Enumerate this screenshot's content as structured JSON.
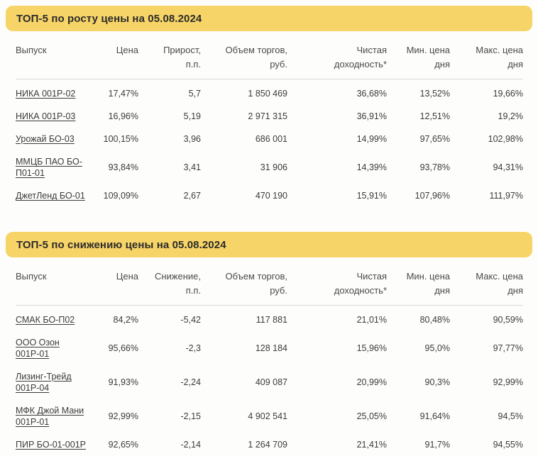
{
  "page": {
    "accent_yellow": "#f7d467",
    "text_color": "#3b3b3b",
    "divider_color": "#d9d9d9",
    "date": "05.08.2024"
  },
  "tables": [
    {
      "title": "ТОП-5 по росту цены на 05.08.2024",
      "headers": {
        "issue": "Выпуск",
        "price": "Цена",
        "change": "Прирост,\nп.п.",
        "volume": "Объем торгов,\nруб.",
        "yield": "Чистая\nдоходность*",
        "min": "Мин. цена\nдня",
        "max": "Макс. цена\nдня"
      },
      "rows": [
        {
          "issue": "НИКА 001Р-02",
          "price": "17,47%",
          "change": "5,7",
          "volume": "1 850 469",
          "yield": "36,68%",
          "min": "13,52%",
          "max": "19,66%"
        },
        {
          "issue": "НИКА 001Р-03",
          "price": "16,96%",
          "change": "5,19",
          "volume": "2 971 315",
          "yield": "36,91%",
          "min": "12,51%",
          "max": "19,2%"
        },
        {
          "issue": "Урожай БО-03",
          "price": "100,15%",
          "change": "3,96",
          "volume": "686 001",
          "yield": "14,99%",
          "min": "97,65%",
          "max": "102,98%"
        },
        {
          "issue": "ММЦБ ПАО БО-П01-01",
          "price": "93,84%",
          "change": "3,41",
          "volume": "31 906",
          "yield": "14,39%",
          "min": "93,78%",
          "max": "94,31%"
        },
        {
          "issue": "ДжетЛенд БО-01",
          "price": "109,09%",
          "change": "2,67",
          "volume": "470 190",
          "yield": "15,91%",
          "min": "107,96%",
          "max": "111,97%"
        }
      ]
    },
    {
      "title": "ТОП-5 по снижению цены на 05.08.2024",
      "headers": {
        "issue": "Выпуск",
        "price": "Цена",
        "change": "Снижение,\nп.п.",
        "volume": "Объем торгов,\nруб.",
        "yield": "Чистая\nдоходность*",
        "min": "Мин. цена\nдня",
        "max": "Макс. цена\nдня"
      },
      "rows": [
        {
          "issue": "СМАК БО-П02",
          "price": "84,2%",
          "change": "-5,42",
          "volume": "117 881",
          "yield": "21,01%",
          "min": "80,48%",
          "max": "90,59%"
        },
        {
          "issue": "ООО Озон 001Р-01",
          "price": "95,66%",
          "change": "-2,3",
          "volume": "128 184",
          "yield": "15,96%",
          "min": "95,0%",
          "max": "97,77%"
        },
        {
          "issue": "Лизинг-Трейд 001Р-04",
          "price": "91,93%",
          "change": "-2,24",
          "volume": "409 087",
          "yield": "20,99%",
          "min": "90,3%",
          "max": "92,99%"
        },
        {
          "issue": "МФК Джой Мани 001Р-01",
          "price": "92,99%",
          "change": "-2,15",
          "volume": "4 902 541",
          "yield": "25,05%",
          "min": "91,64%",
          "max": "94,5%"
        },
        {
          "issue": "ПИР БО-01-001Р",
          "price": "92,65%",
          "change": "-2,14",
          "volume": "1 264 709",
          "yield": "21,41%",
          "min": "91,7%",
          "max": "94,55%"
        }
      ]
    }
  ]
}
